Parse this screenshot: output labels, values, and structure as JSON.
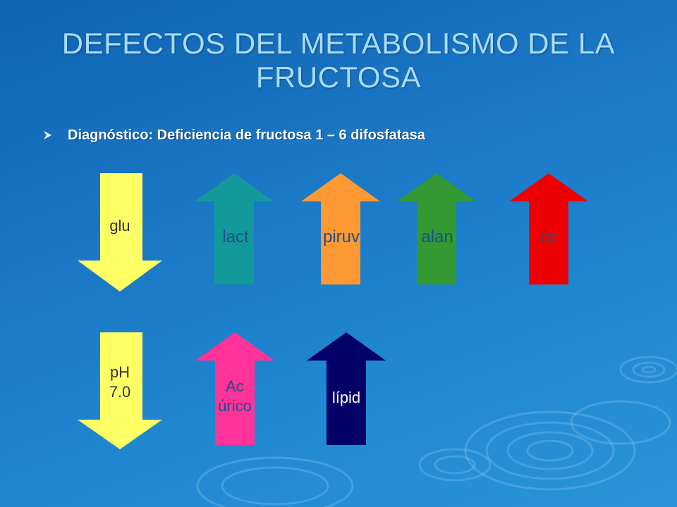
{
  "title": {
    "line1": "DEFECTOS DEL METABOLISMO DE LA",
    "line2": "FRUCTOSA"
  },
  "bullet": {
    "icon": "arrowhead-bullet-icon",
    "text": "Diagnóstico: Deficiencia de fructosa 1 – 6 difosfatasa"
  },
  "arrows": [
    {
      "id": "glu",
      "lines": [
        "glu"
      ],
      "direction": "down",
      "color": "#ffff66",
      "text_color": "#333333"
    },
    {
      "id": "lact",
      "lines": [
        "lact"
      ],
      "direction": "up",
      "color": "#14999a",
      "text_color": "#1f4f8f"
    },
    {
      "id": "piruv",
      "lines": [
        "piruv"
      ],
      "direction": "up",
      "color": "#ff9933",
      "text_color": "#1f4f8f"
    },
    {
      "id": "alan",
      "lines": [
        "alan"
      ],
      "direction": "up",
      "color": "#339933",
      "text_color": "#1f4f8f"
    },
    {
      "id": "cc",
      "lines": [
        "cc"
      ],
      "direction": "up",
      "color": "#ee0000",
      "text_color": "#1f4f8f"
    },
    {
      "id": "ph",
      "lines": [
        "pH",
        "7.0"
      ],
      "direction": "down",
      "color": "#ffff66",
      "text_color": "#333333"
    },
    {
      "id": "ac-urico",
      "lines": [
        "Ac",
        "úrico"
      ],
      "direction": "up",
      "color": "#ff3399",
      "text_color": "#1f4f8f"
    },
    {
      "id": "lipid",
      "lines": [
        "lípid"
      ],
      "direction": "up",
      "color": "#000066",
      "text_color": "#ffffff"
    }
  ]
}
